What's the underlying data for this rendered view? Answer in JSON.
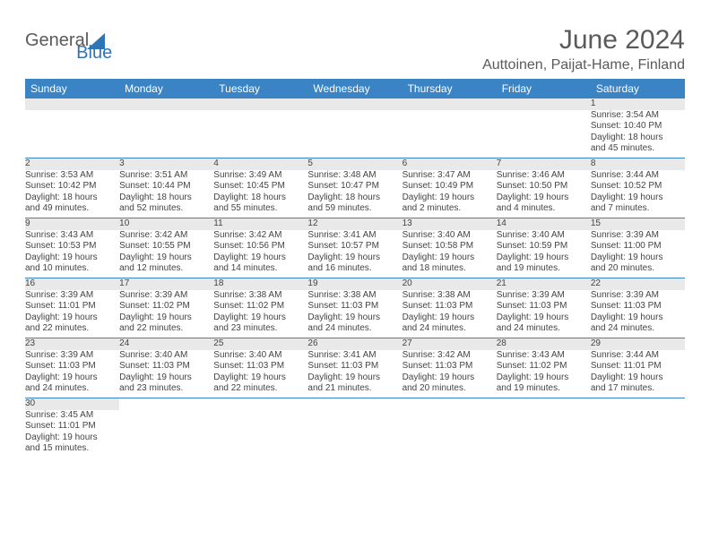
{
  "branding": {
    "logo_general": "General",
    "logo_blue": "Blue"
  },
  "header": {
    "month_title": "June 2024",
    "location": "Auttoinen, Paijat-Hame, Finland"
  },
  "colors": {
    "header_bg": "#3a83c4",
    "header_text": "#ffffff",
    "daynum_bg": "#e9e9e9",
    "text": "#444444",
    "row_border": "#3a83c4",
    "logo_gray": "#5a5a5a",
    "logo_blue": "#2f75b5"
  },
  "weekdays": [
    "Sunday",
    "Monday",
    "Tuesday",
    "Wednesday",
    "Thursday",
    "Friday",
    "Saturday"
  ],
  "weeks": [
    [
      null,
      null,
      null,
      null,
      null,
      null,
      {
        "n": "1",
        "sunrise": "Sunrise: 3:54 AM",
        "sunset": "Sunset: 10:40 PM",
        "d1": "Daylight: 18 hours",
        "d2": "and 45 minutes."
      }
    ],
    [
      {
        "n": "2",
        "sunrise": "Sunrise: 3:53 AM",
        "sunset": "Sunset: 10:42 PM",
        "d1": "Daylight: 18 hours",
        "d2": "and 49 minutes."
      },
      {
        "n": "3",
        "sunrise": "Sunrise: 3:51 AM",
        "sunset": "Sunset: 10:44 PM",
        "d1": "Daylight: 18 hours",
        "d2": "and 52 minutes."
      },
      {
        "n": "4",
        "sunrise": "Sunrise: 3:49 AM",
        "sunset": "Sunset: 10:45 PM",
        "d1": "Daylight: 18 hours",
        "d2": "and 55 minutes."
      },
      {
        "n": "5",
        "sunrise": "Sunrise: 3:48 AM",
        "sunset": "Sunset: 10:47 PM",
        "d1": "Daylight: 18 hours",
        "d2": "and 59 minutes."
      },
      {
        "n": "6",
        "sunrise": "Sunrise: 3:47 AM",
        "sunset": "Sunset: 10:49 PM",
        "d1": "Daylight: 19 hours",
        "d2": "and 2 minutes."
      },
      {
        "n": "7",
        "sunrise": "Sunrise: 3:46 AM",
        "sunset": "Sunset: 10:50 PM",
        "d1": "Daylight: 19 hours",
        "d2": "and 4 minutes."
      },
      {
        "n": "8",
        "sunrise": "Sunrise: 3:44 AM",
        "sunset": "Sunset: 10:52 PM",
        "d1": "Daylight: 19 hours",
        "d2": "and 7 minutes."
      }
    ],
    [
      {
        "n": "9",
        "sunrise": "Sunrise: 3:43 AM",
        "sunset": "Sunset: 10:53 PM",
        "d1": "Daylight: 19 hours",
        "d2": "and 10 minutes."
      },
      {
        "n": "10",
        "sunrise": "Sunrise: 3:42 AM",
        "sunset": "Sunset: 10:55 PM",
        "d1": "Daylight: 19 hours",
        "d2": "and 12 minutes."
      },
      {
        "n": "11",
        "sunrise": "Sunrise: 3:42 AM",
        "sunset": "Sunset: 10:56 PM",
        "d1": "Daylight: 19 hours",
        "d2": "and 14 minutes."
      },
      {
        "n": "12",
        "sunrise": "Sunrise: 3:41 AM",
        "sunset": "Sunset: 10:57 PM",
        "d1": "Daylight: 19 hours",
        "d2": "and 16 minutes."
      },
      {
        "n": "13",
        "sunrise": "Sunrise: 3:40 AM",
        "sunset": "Sunset: 10:58 PM",
        "d1": "Daylight: 19 hours",
        "d2": "and 18 minutes."
      },
      {
        "n": "14",
        "sunrise": "Sunrise: 3:40 AM",
        "sunset": "Sunset: 10:59 PM",
        "d1": "Daylight: 19 hours",
        "d2": "and 19 minutes."
      },
      {
        "n": "15",
        "sunrise": "Sunrise: 3:39 AM",
        "sunset": "Sunset: 11:00 PM",
        "d1": "Daylight: 19 hours",
        "d2": "and 20 minutes."
      }
    ],
    [
      {
        "n": "16",
        "sunrise": "Sunrise: 3:39 AM",
        "sunset": "Sunset: 11:01 PM",
        "d1": "Daylight: 19 hours",
        "d2": "and 22 minutes."
      },
      {
        "n": "17",
        "sunrise": "Sunrise: 3:39 AM",
        "sunset": "Sunset: 11:02 PM",
        "d1": "Daylight: 19 hours",
        "d2": "and 22 minutes."
      },
      {
        "n": "18",
        "sunrise": "Sunrise: 3:38 AM",
        "sunset": "Sunset: 11:02 PM",
        "d1": "Daylight: 19 hours",
        "d2": "and 23 minutes."
      },
      {
        "n": "19",
        "sunrise": "Sunrise: 3:38 AM",
        "sunset": "Sunset: 11:03 PM",
        "d1": "Daylight: 19 hours",
        "d2": "and 24 minutes."
      },
      {
        "n": "20",
        "sunrise": "Sunrise: 3:38 AM",
        "sunset": "Sunset: 11:03 PM",
        "d1": "Daylight: 19 hours",
        "d2": "and 24 minutes."
      },
      {
        "n": "21",
        "sunrise": "Sunrise: 3:39 AM",
        "sunset": "Sunset: 11:03 PM",
        "d1": "Daylight: 19 hours",
        "d2": "and 24 minutes."
      },
      {
        "n": "22",
        "sunrise": "Sunrise: 3:39 AM",
        "sunset": "Sunset: 11:03 PM",
        "d1": "Daylight: 19 hours",
        "d2": "and 24 minutes."
      }
    ],
    [
      {
        "n": "23",
        "sunrise": "Sunrise: 3:39 AM",
        "sunset": "Sunset: 11:03 PM",
        "d1": "Daylight: 19 hours",
        "d2": "and 24 minutes."
      },
      {
        "n": "24",
        "sunrise": "Sunrise: 3:40 AM",
        "sunset": "Sunset: 11:03 PM",
        "d1": "Daylight: 19 hours",
        "d2": "and 23 minutes."
      },
      {
        "n": "25",
        "sunrise": "Sunrise: 3:40 AM",
        "sunset": "Sunset: 11:03 PM",
        "d1": "Daylight: 19 hours",
        "d2": "and 22 minutes."
      },
      {
        "n": "26",
        "sunrise": "Sunrise: 3:41 AM",
        "sunset": "Sunset: 11:03 PM",
        "d1": "Daylight: 19 hours",
        "d2": "and 21 minutes."
      },
      {
        "n": "27",
        "sunrise": "Sunrise: 3:42 AM",
        "sunset": "Sunset: 11:03 PM",
        "d1": "Daylight: 19 hours",
        "d2": "and 20 minutes."
      },
      {
        "n": "28",
        "sunrise": "Sunrise: 3:43 AM",
        "sunset": "Sunset: 11:02 PM",
        "d1": "Daylight: 19 hours",
        "d2": "and 19 minutes."
      },
      {
        "n": "29",
        "sunrise": "Sunrise: 3:44 AM",
        "sunset": "Sunset: 11:01 PM",
        "d1": "Daylight: 19 hours",
        "d2": "and 17 minutes."
      }
    ],
    [
      {
        "n": "30",
        "sunrise": "Sunrise: 3:45 AM",
        "sunset": "Sunset: 11:01 PM",
        "d1": "Daylight: 19 hours",
        "d2": "and 15 minutes."
      },
      null,
      null,
      null,
      null,
      null,
      null
    ]
  ]
}
